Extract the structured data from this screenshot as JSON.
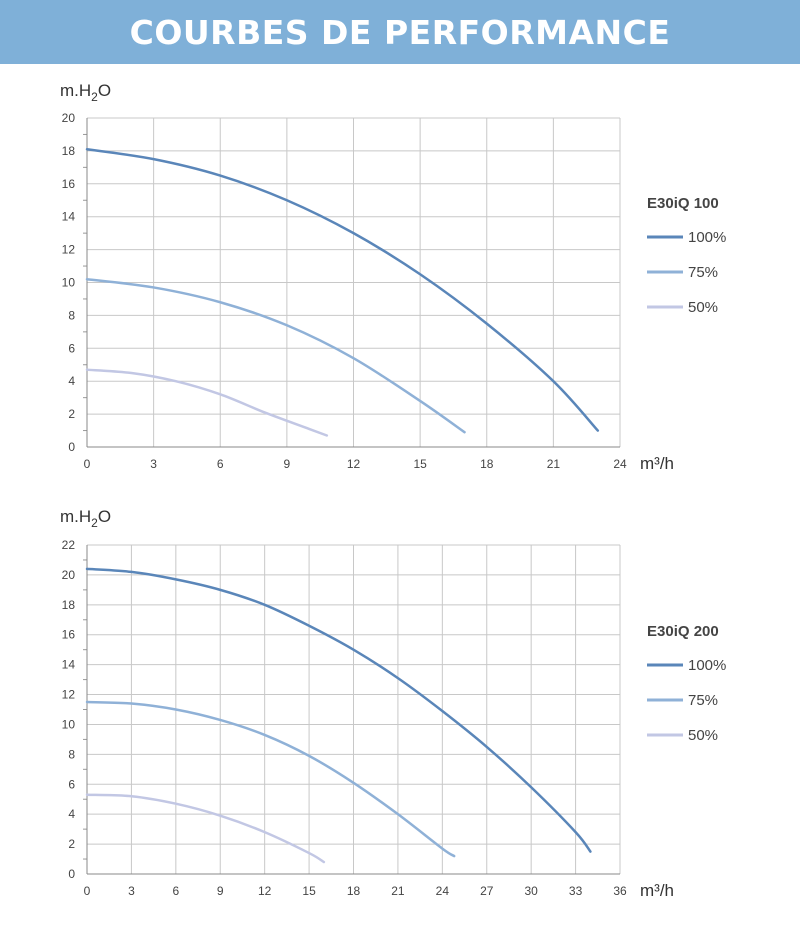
{
  "header": {
    "title": "COURBES DE PERFORMANCE"
  },
  "colors": {
    "header_bg": "#7fb0d8",
    "s100": "#5a86b9",
    "s75": "#8fb1d7",
    "s50": "#c2c7e4",
    "grid": "#c8c8c8"
  },
  "chart_data": [
    {
      "type": "line",
      "ylabel": "m.H2O",
      "xlabel": "m³/h",
      "xlim": [
        0,
        24
      ],
      "ylim": [
        0,
        20
      ],
      "xticks": [
        0,
        3,
        6,
        9,
        12,
        15,
        18,
        21,
        24
      ],
      "yticks": [
        0,
        2,
        4,
        6,
        8,
        10,
        12,
        14,
        16,
        18,
        20
      ],
      "legend_title": "E30iQ 100",
      "legend_position": "right",
      "grid": true,
      "series": [
        {
          "name": "100%",
          "color": "#5a86b9",
          "x": [
            0,
            3,
            6,
            9,
            12,
            15,
            18,
            21,
            23
          ],
          "y": [
            18.1,
            17.5,
            16.5,
            15.0,
            13.0,
            10.5,
            7.5,
            4.0,
            1.0
          ]
        },
        {
          "name": "75%",
          "color": "#8fb1d7",
          "x": [
            0,
            3,
            6,
            9,
            12,
            15,
            17
          ],
          "y": [
            10.2,
            9.7,
            8.8,
            7.4,
            5.4,
            2.8,
            0.9
          ]
        },
        {
          "name": "50%",
          "color": "#c2c7e4",
          "x": [
            0,
            2,
            4,
            6,
            8,
            10,
            10.8
          ],
          "y": [
            4.7,
            4.5,
            4.0,
            3.2,
            2.1,
            1.1,
            0.7
          ]
        }
      ]
    },
    {
      "type": "line",
      "ylabel": "m.H2O",
      "xlabel": "m³/h",
      "xlim": [
        0,
        36
      ],
      "ylim": [
        0,
        22
      ],
      "xticks": [
        0,
        3,
        6,
        9,
        12,
        15,
        18,
        21,
        24,
        27,
        30,
        33,
        36
      ],
      "yticks": [
        0,
        2,
        4,
        6,
        8,
        10,
        12,
        14,
        16,
        18,
        20,
        22
      ],
      "legend_title": "E30iQ 200",
      "legend_position": "right",
      "grid": true,
      "series": [
        {
          "name": "100%",
          "color": "#5a86b9",
          "x": [
            0,
            3,
            6,
            9,
            12,
            15,
            18,
            21,
            24,
            27,
            30,
            33,
            34
          ],
          "y": [
            20.4,
            20.2,
            19.7,
            19.0,
            18.0,
            16.6,
            15.0,
            13.1,
            10.9,
            8.5,
            5.8,
            2.8,
            1.5
          ]
        },
        {
          "name": "75%",
          "color": "#8fb1d7",
          "x": [
            0,
            3,
            6,
            9,
            12,
            15,
            18,
            21,
            24,
            24.8
          ],
          "y": [
            11.5,
            11.4,
            11.0,
            10.3,
            9.3,
            7.9,
            6.1,
            4.0,
            1.7,
            1.2
          ]
        },
        {
          "name": "50%",
          "color": "#c2c7e4",
          "x": [
            0,
            3,
            6,
            9,
            12,
            15,
            16
          ],
          "y": [
            5.3,
            5.2,
            4.7,
            3.9,
            2.8,
            1.4,
            0.8
          ]
        }
      ]
    }
  ]
}
